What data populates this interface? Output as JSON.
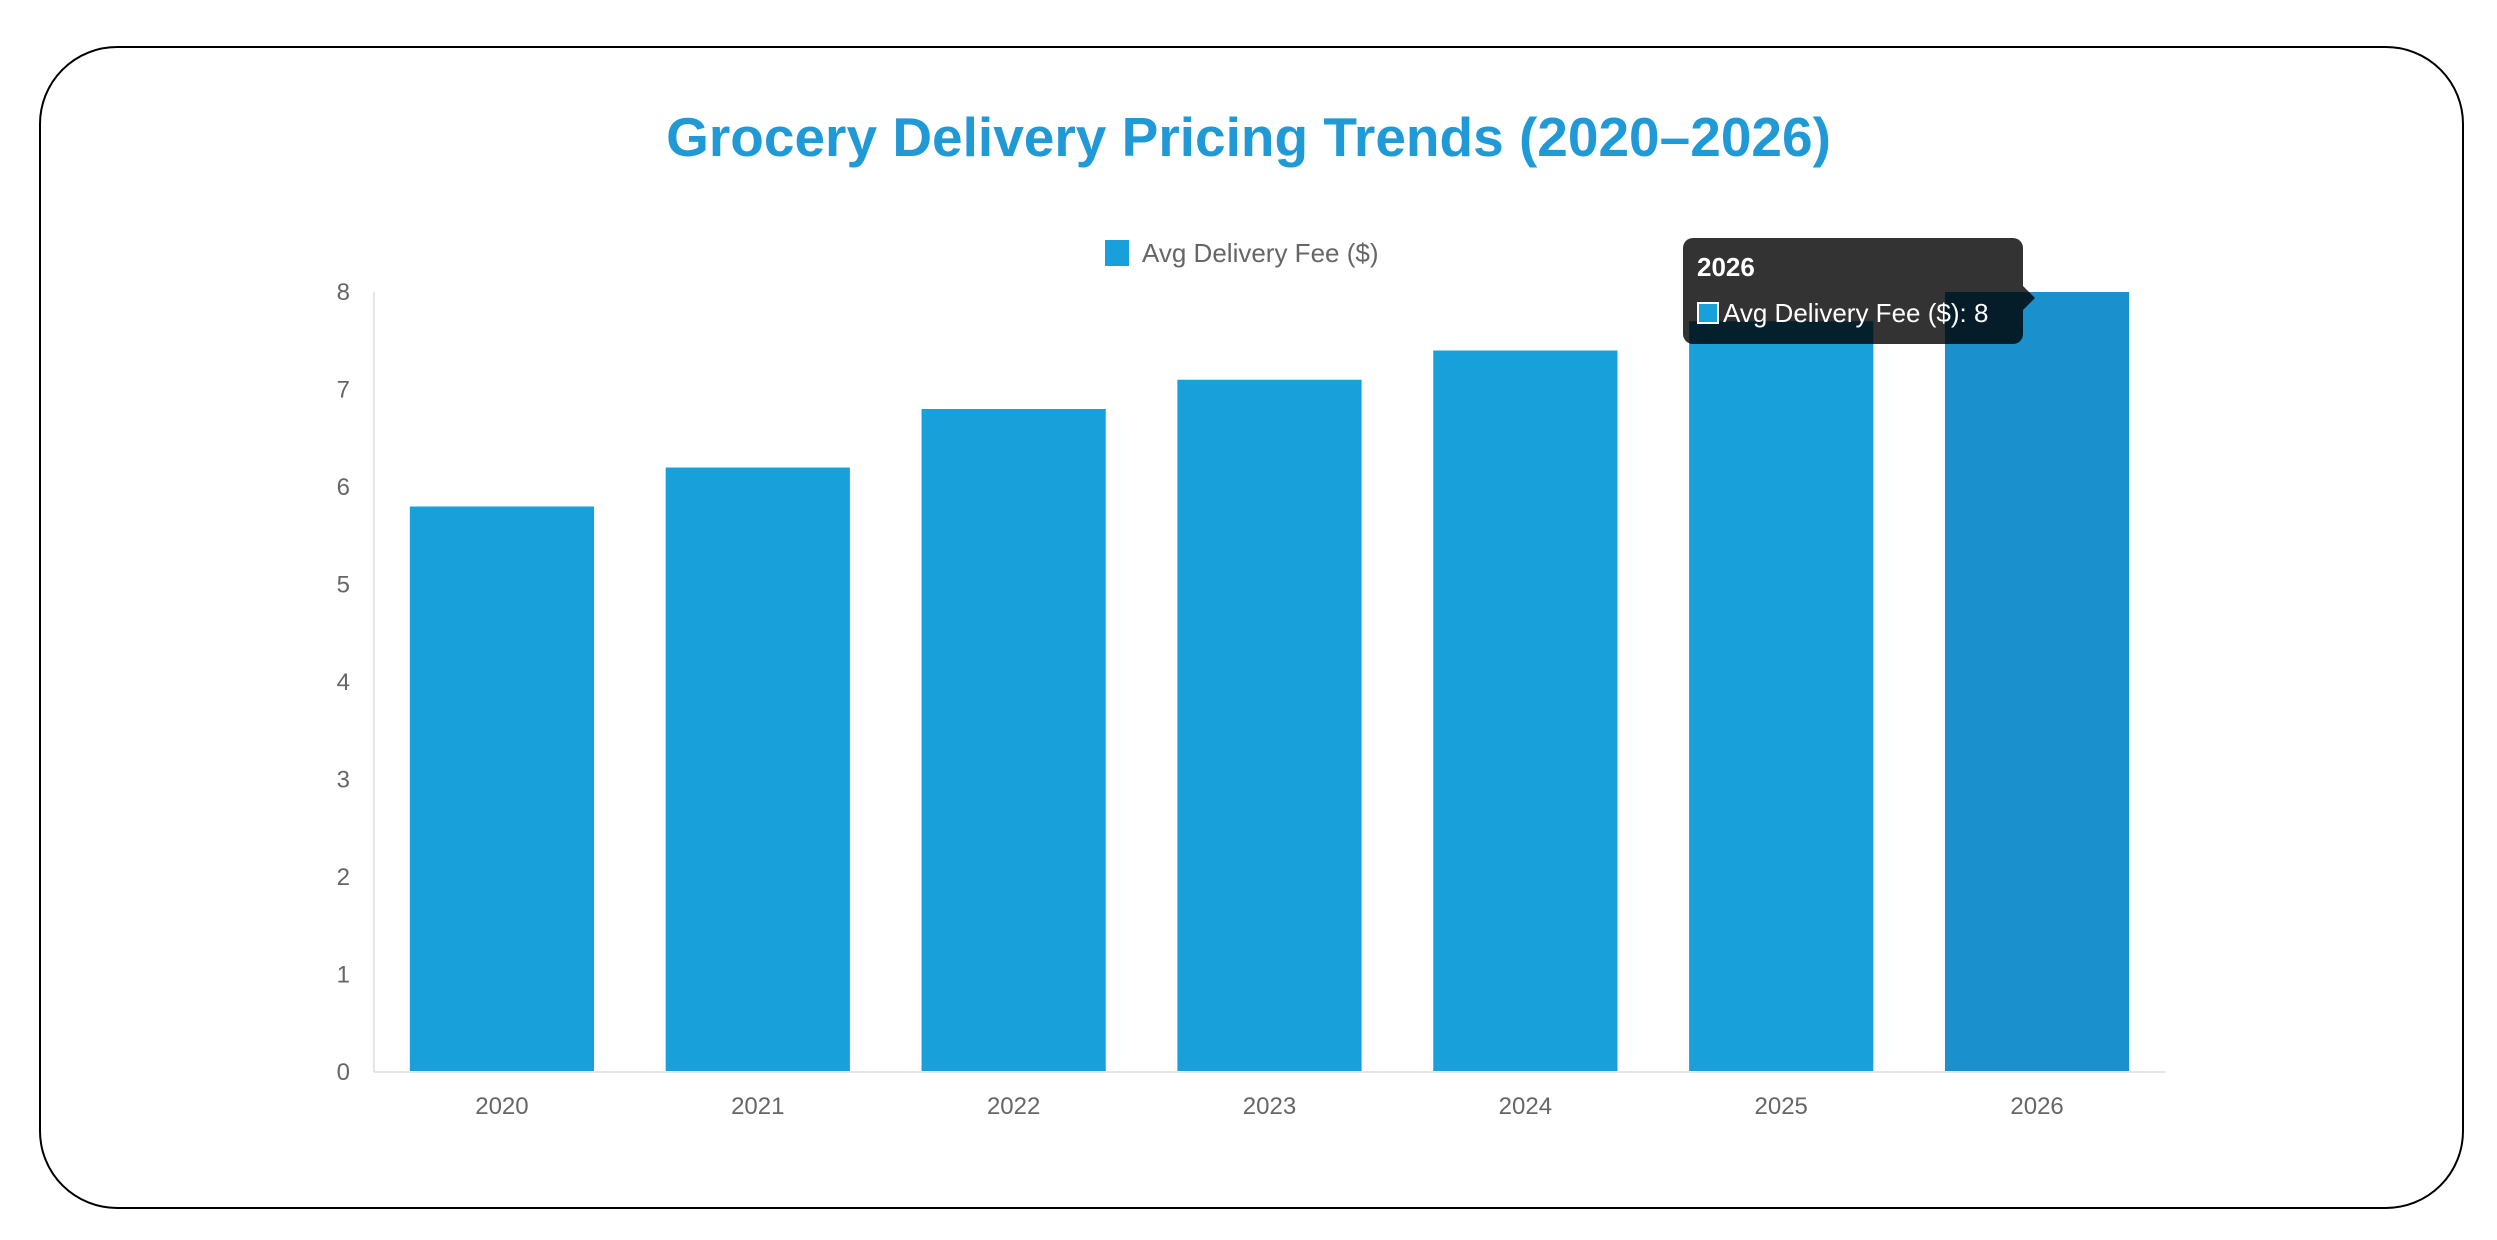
{
  "chart_data": {
    "type": "bar",
    "title": "Grocery Delivery Pricing Trends (2020–2026)",
    "categories": [
      "2020",
      "2021",
      "2022",
      "2023",
      "2024",
      "2025",
      "2026"
    ],
    "series": [
      {
        "name": "Avg Delivery Fee ($)",
        "values": [
          5.8,
          6.2,
          6.8,
          7.1,
          7.4,
          7.7,
          8.0
        ],
        "color": "#18a0da",
        "hover_color": "#1a90cc"
      }
    ],
    "ylim": [
      0,
      8
    ],
    "yticks": [
      "0",
      "1",
      "2",
      "3",
      "4",
      "5",
      "6",
      "7",
      "8"
    ],
    "grid": false,
    "legend_position": "top-center",
    "highlighted_category": "2026"
  },
  "tooltip": {
    "title": "2026",
    "series_label": "Avg Delivery Fee ($)",
    "value": "8",
    "separator": ": "
  }
}
